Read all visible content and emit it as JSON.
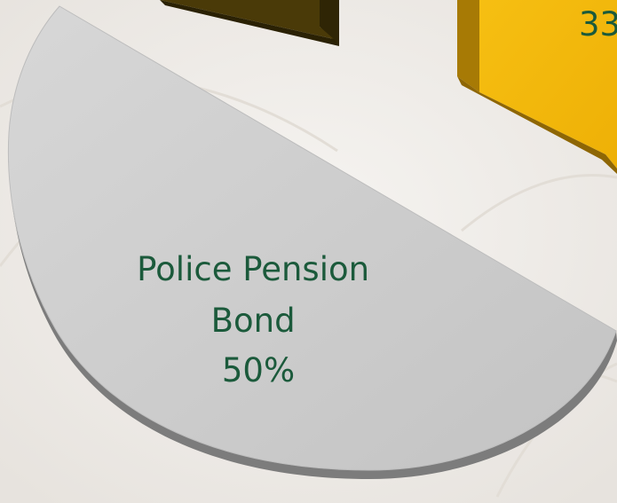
{
  "chart_data": {
    "type": "pie",
    "style": "3d-exploded",
    "slices": [
      {
        "label_lines": [
          "Police Pension",
          "Bond",
          "50%"
        ],
        "value": 50,
        "unit": "%",
        "color": "#c9c9c9"
      },
      {
        "label_lines": [
          "33"
        ],
        "value": 33,
        "unit": "%",
        "color": "#f3b80a"
      },
      {
        "label_lines": [],
        "color": "#4a3a08"
      }
    ]
  },
  "colors": {
    "background": "#f1efec",
    "label_text": "#1b5a3b",
    "gray_side": "#7c7c7c",
    "yellow_side": "#a77a05"
  }
}
